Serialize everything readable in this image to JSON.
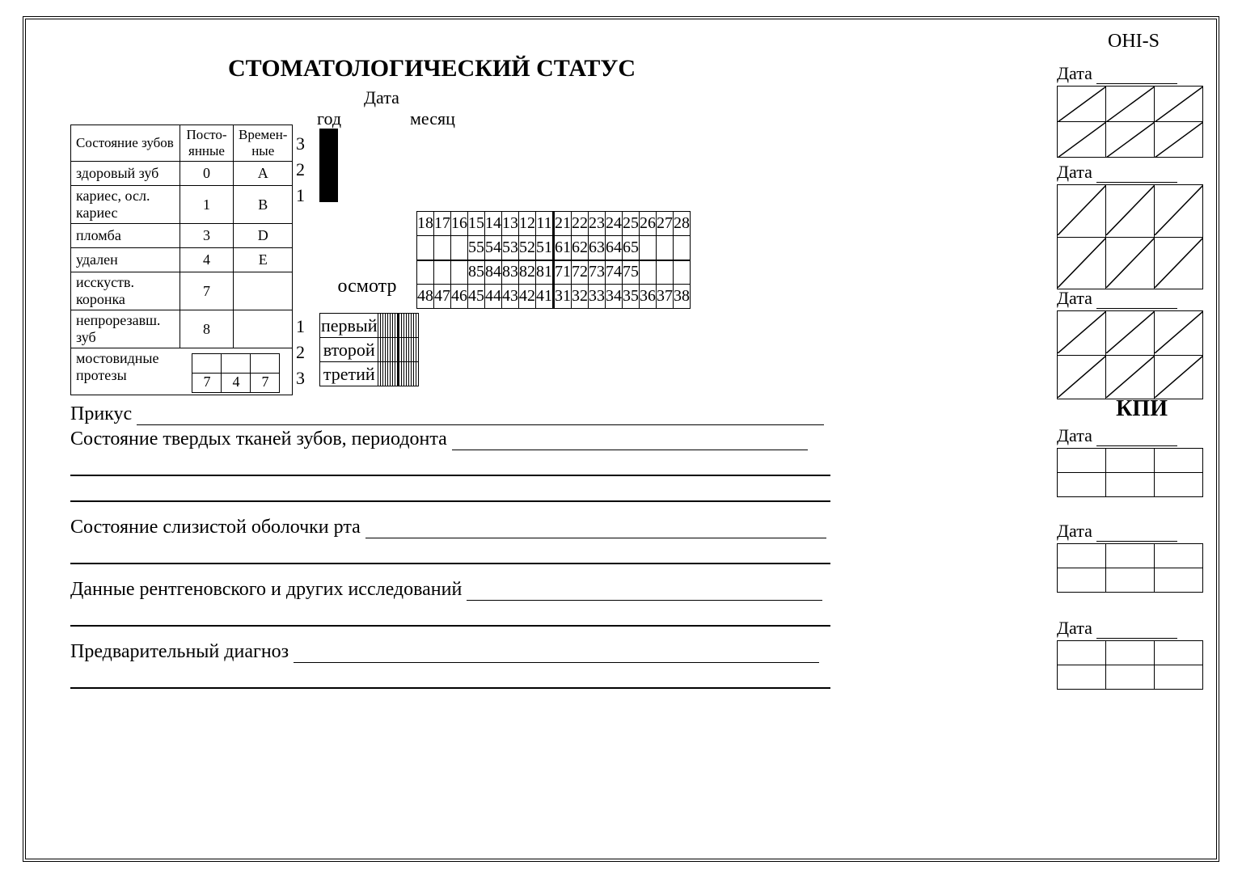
{
  "title": "СТОМАТОЛОГИЧЕСКИЙ  СТАТУС",
  "ohis": "OHI-S",
  "date_label": "Дата",
  "year_label": "год",
  "month_label": "месяц",
  "cond": {
    "header": {
      "c0": "Состояние зубов",
      "c1": "Посто-\nянные",
      "c2": "Времен-\nные"
    },
    "rows": [
      {
        "label": "здоровый зуб",
        "perm": "0",
        "temp": "A"
      },
      {
        "label": "кариес, осл. кариес",
        "perm": "1",
        "temp": "B"
      },
      {
        "label": "пломба",
        "perm": "3",
        "temp": "D"
      },
      {
        "label": "удален",
        "perm": "4",
        "temp": "E"
      },
      {
        "label": "исскуств. коронка",
        "perm": "7",
        "temp": ""
      },
      {
        "label": "непрорезавш. зуб",
        "perm": "8",
        "temp": ""
      }
    ],
    "bridge_label": "мостовидные\nпротезы",
    "bridge_values": [
      "7",
      "4",
      "7"
    ]
  },
  "nums": {
    "top": [
      "3",
      "2",
      "1"
    ],
    "bottom": [
      "1",
      "2",
      "3"
    ]
  },
  "teeth": {
    "upper_perm": [
      "18",
      "17",
      "16",
      "15",
      "14",
      "13",
      "12",
      "11",
      "21",
      "22",
      "23",
      "24",
      "25",
      "26",
      "27",
      "28"
    ],
    "upper_decid": [
      "",
      "",
      "",
      "55",
      "54",
      "53",
      "52",
      "51",
      "61",
      "62",
      "63",
      "64",
      "65",
      "",
      "",
      ""
    ],
    "lower_decid": [
      "",
      "",
      "",
      "85",
      "84",
      "83",
      "82",
      "81",
      "71",
      "72",
      "73",
      "74",
      "75",
      "",
      "",
      ""
    ],
    "lower_perm": [
      "48",
      "47",
      "46",
      "45",
      "44",
      "43",
      "42",
      "41",
      "31",
      "32",
      "33",
      "34",
      "35",
      "36",
      "37",
      "38"
    ]
  },
  "osmotr": "осмотр",
  "exams": [
    "первый",
    "второй",
    "третий"
  ],
  "kpi": "КПИ",
  "lower": {
    "l1": "Прикус",
    "l2": "Состояние твердых тканей зубов, периодонта",
    "l3": "Состояние слизистой оболочки рта",
    "l4": "Данные рентгеновского и других исследований",
    "l5": "Предварительный диагноз"
  },
  "style": {
    "border_color": "#000000",
    "bg": "#ffffff",
    "font": "Times New Roman",
    "grid_cols": 20
  }
}
